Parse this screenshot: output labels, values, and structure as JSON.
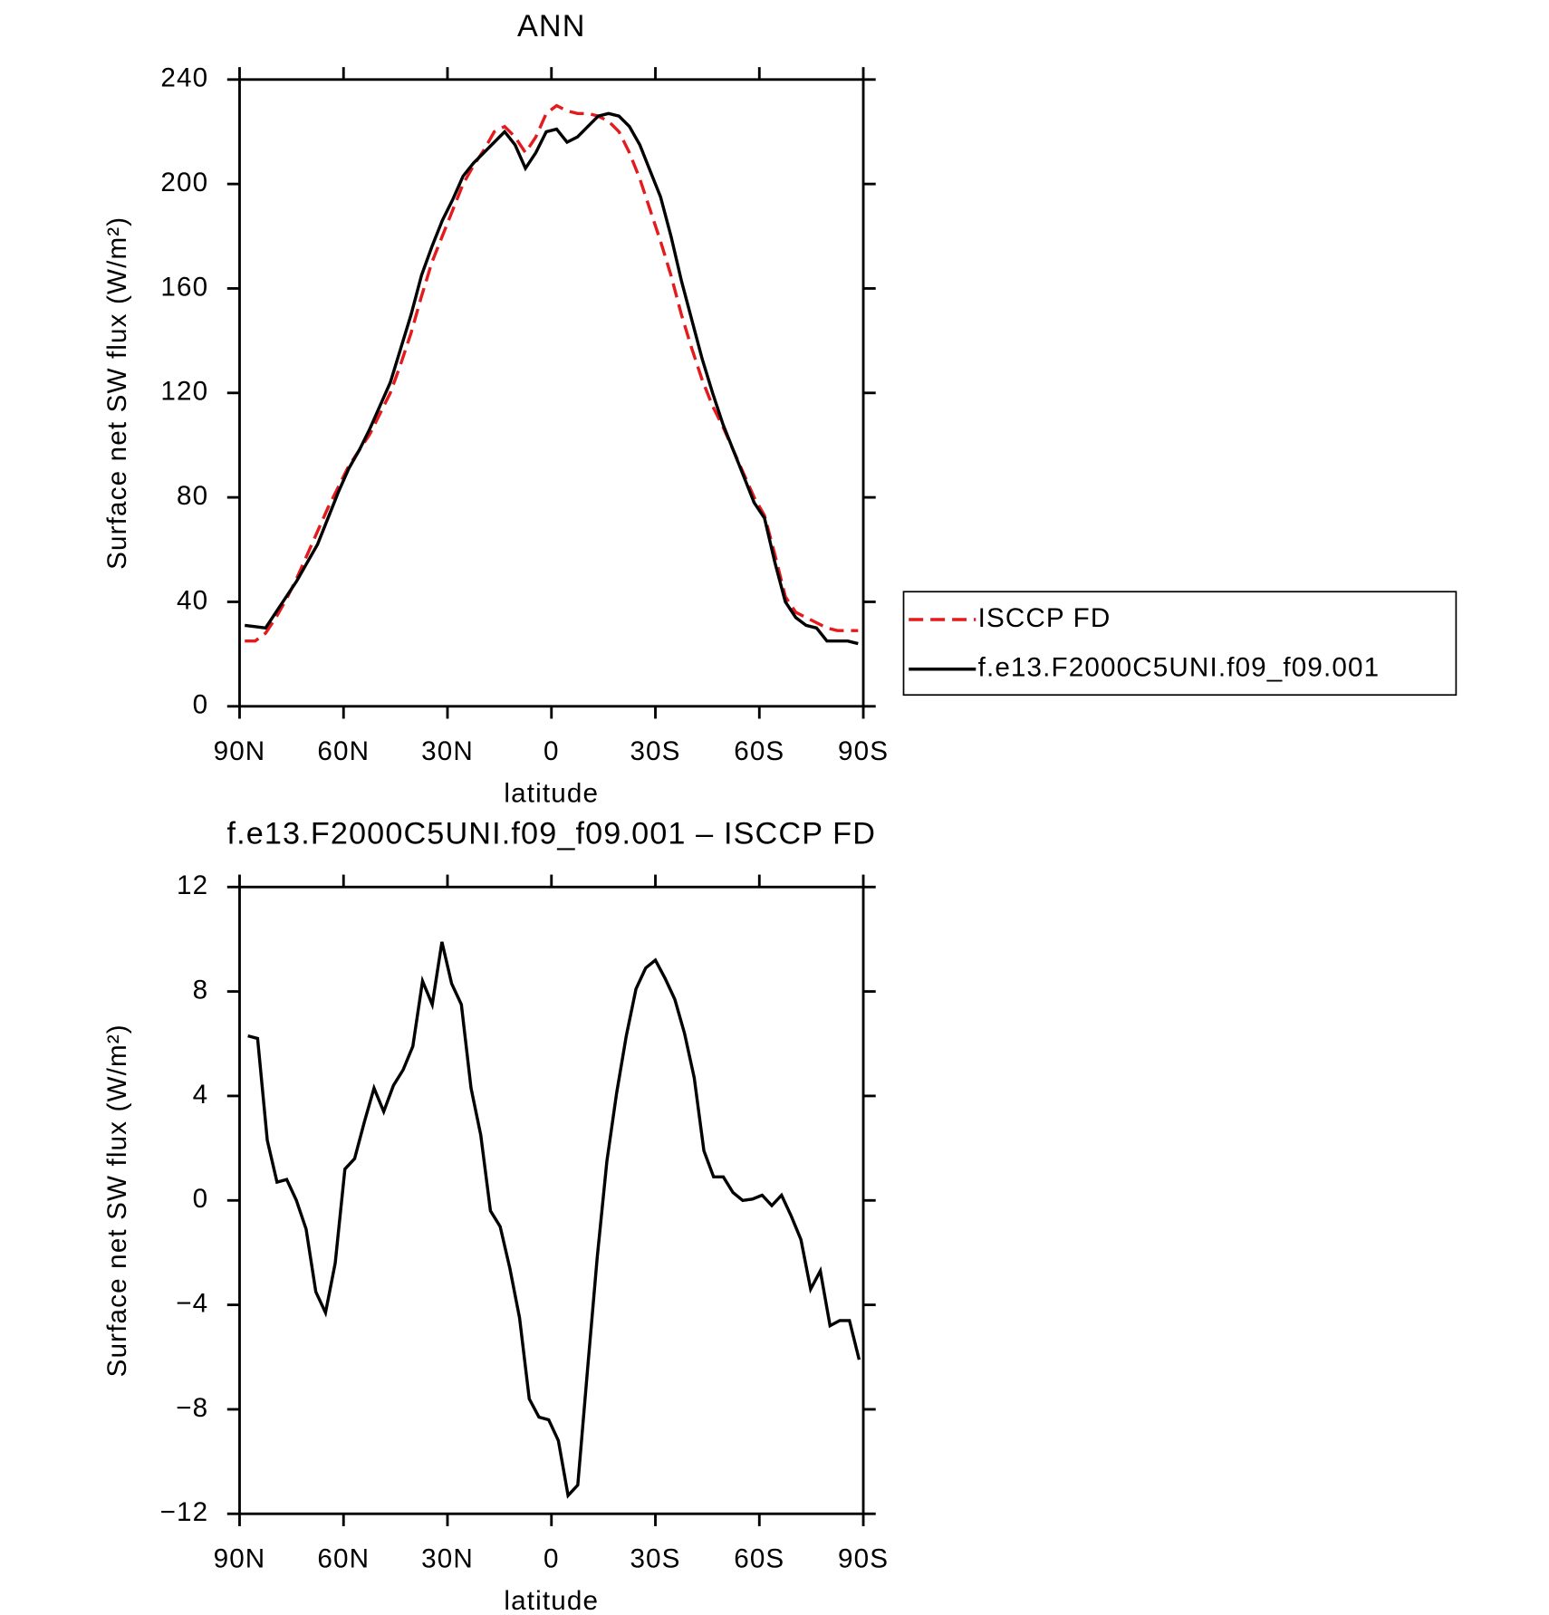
{
  "chart_data": [
    {
      "type": "line",
      "title": "ANN",
      "x_label": "latitude",
      "y_label": "Surface net SW flux (W/m²)",
      "x": [
        88.5,
        85.5,
        82.5,
        79.5,
        76.5,
        73.5,
        70.5,
        67.5,
        64.5,
        61.5,
        58.5,
        55.5,
        52.5,
        49.5,
        46.5,
        43.5,
        40.5,
        37.5,
        34.5,
        31.5,
        28.5,
        25.5,
        22.5,
        19.5,
        16.5,
        13.5,
        10.5,
        7.5,
        4.5,
        1.5,
        -1.5,
        -4.5,
        -7.5,
        -10.5,
        -13.5,
        -16.5,
        -19.5,
        -22.5,
        -25.5,
        -28.5,
        -31.5,
        -34.5,
        -37.5,
        -40.5,
        -43.5,
        -46.5,
        -49.5,
        -52.5,
        -55.5,
        -58.5,
        -61.5,
        -64.5,
        -67.5,
        -70.5,
        -73.5,
        -76.5,
        -79.5,
        -82.5,
        -85.5,
        -88.5
      ],
      "series": [
        {
          "name": "ISCCP FD",
          "color": "#e41a1c",
          "dash": "dashed",
          "values": [
            25,
            25,
            28,
            34,
            41,
            49,
            58,
            67,
            76,
            84,
            92,
            98,
            104,
            112,
            120,
            131,
            143,
            157,
            170,
            180,
            190,
            200,
            207,
            213,
            220,
            222,
            218,
            212,
            218,
            227,
            230,
            228,
            227,
            227,
            226,
            224,
            220,
            212,
            202,
            190,
            178,
            165,
            150,
            137,
            125,
            115,
            107,
            98,
            89,
            80,
            73,
            58,
            42,
            36,
            34,
            32,
            30,
            29,
            29,
            29
          ]
        },
        {
          "name": "f.e13.F2000C5UNI.f09_f09.001",
          "color": "#000000",
          "dash": "solid",
          "values": [
            31,
            30.5,
            30,
            36,
            42,
            48,
            55,
            62,
            72,
            82,
            91,
            98,
            106,
            115,
            124,
            137,
            150,
            165,
            176,
            186,
            194,
            203,
            208,
            212,
            216,
            220,
            215,
            206,
            212,
            220,
            221,
            216,
            218,
            222,
            226,
            227,
            226,
            222,
            215,
            205,
            195,
            180,
            163,
            148,
            133,
            120,
            108,
            98,
            88,
            78,
            72,
            55,
            40,
            34,
            31,
            30,
            25,
            25,
            25,
            24
          ]
        }
      ],
      "xlim": [
        90,
        -90
      ],
      "xticks": [
        {
          "value": 90,
          "label": "90N"
        },
        {
          "value": 60,
          "label": "60N"
        },
        {
          "value": 30,
          "label": "30N"
        },
        0,
        {
          "value": -30,
          "label": "30S"
        },
        {
          "value": -60,
          "label": "60S"
        },
        {
          "value": -90,
          "label": "90S"
        }
      ],
      "ylim": [
        0,
        240
      ],
      "yticks": [
        0,
        40,
        80,
        120,
        160,
        200,
        240
      ],
      "legend": "right"
    },
    {
      "type": "line",
      "title": "f.e13.F2000C5UNI.f09_f09.001 – ISCCP FD",
      "x_label": "latitude",
      "y_label": "Surface net SW flux (W/m²)",
      "x": [
        87.6,
        84.8,
        82,
        79.2,
        76.4,
        73.6,
        70.8,
        68,
        65.2,
        62.4,
        59.6,
        56.8,
        54,
        51.2,
        48.4,
        45.6,
        42.8,
        40,
        37.2,
        34.4,
        31.6,
        28.8,
        26,
        23.2,
        20.4,
        17.6,
        14.8,
        12,
        9.2,
        6.4,
        3.6,
        0.8,
        -2,
        -4.8,
        -7.6,
        -10.4,
        -13.2,
        -16,
        -18.8,
        -21.6,
        -24.4,
        -27.2,
        -30,
        -32.8,
        -35.6,
        -38.4,
        -41.2,
        -44,
        -46.8,
        -49.6,
        -52.4,
        -55.2,
        -58,
        -60.8,
        -63.6,
        -66.4,
        -69.2,
        -72,
        -74.8,
        -77.6,
        -80.4,
        -83.2,
        -86,
        -88.8
      ],
      "series": [
        {
          "name": null,
          "color": "#000000",
          "dash": "solid",
          "values": [
            6.3,
            6.2,
            2.3,
            0.7,
            0.8,
            0,
            -1.1,
            -3.5,
            -4.3,
            -2.4,
            1.2,
            1.6,
            3,
            4.3,
            3.4,
            4.4,
            5,
            5.9,
            8.4,
            7.5,
            9.9,
            8.3,
            7.5,
            4.3,
            2.5,
            -0.4,
            -1,
            -2.6,
            -4.5,
            -7.6,
            -8.3,
            -8.4,
            -9.2,
            -11.3,
            -10.9,
            -6.5,
            -2.2,
            1.5,
            4.1,
            6.3,
            8.1,
            8.9,
            9.2,
            8.5,
            7.7,
            6.4,
            4.7,
            1.9,
            0.9,
            0.9,
            0.3,
            0,
            0.05,
            0.2,
            -0.2,
            0.2,
            -0.6,
            -1.5,
            -3.4,
            -2.7,
            -4.8,
            -4.6,
            -4.6,
            -6.1
          ]
        }
      ],
      "xlim": [
        90,
        -90
      ],
      "xticks": [
        {
          "value": 90,
          "label": "90N"
        },
        {
          "value": 60,
          "label": "60N"
        },
        {
          "value": 30,
          "label": "30N"
        },
        0,
        {
          "value": -30,
          "label": "30S"
        },
        {
          "value": -60,
          "label": "60S"
        },
        {
          "value": -90,
          "label": "90S"
        }
      ],
      "ylim": [
        -12,
        12
      ],
      "yticks": [
        {
          "value": -12,
          "label": "−12"
        },
        {
          "value": -8,
          "label": "−8"
        },
        {
          "value": -4,
          "label": "−4"
        },
        0,
        4,
        8,
        12
      ]
    }
  ]
}
